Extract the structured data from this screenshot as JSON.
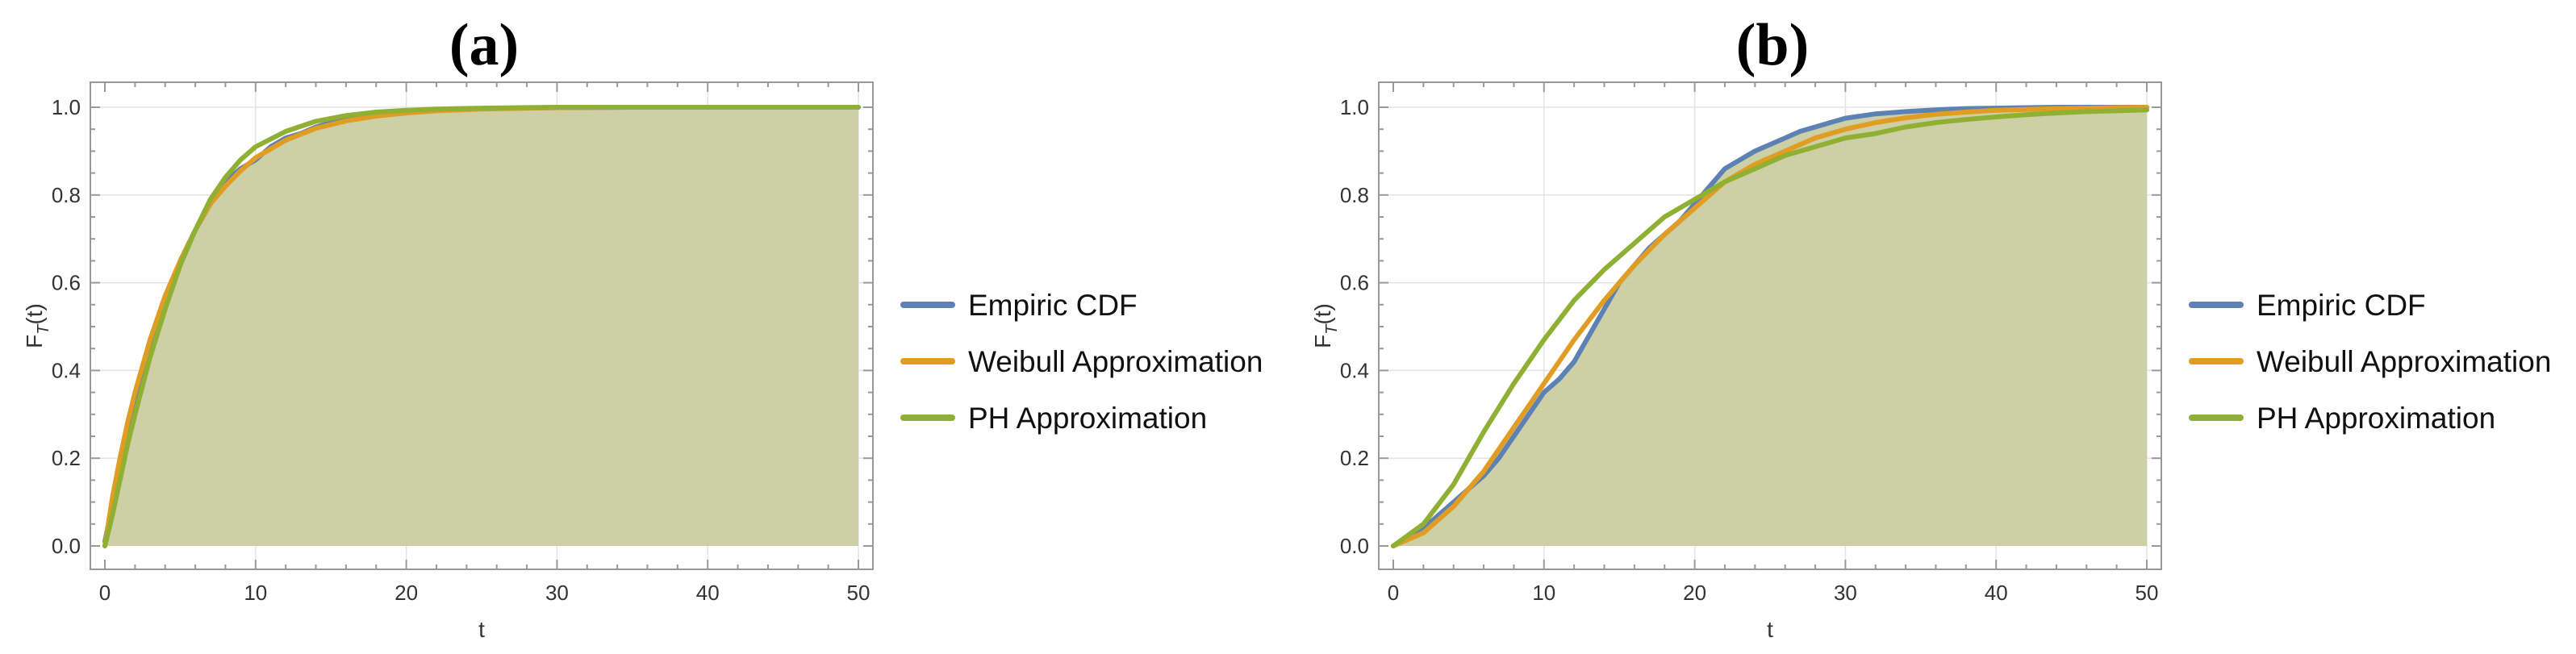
{
  "chart_data": [
    {
      "type": "line",
      "title": "(a)",
      "xlabel": "t",
      "ylabel": "F_T(t)",
      "xlim": [
        0,
        50
      ],
      "ylim": [
        0,
        1
      ],
      "xticks": [
        "0",
        "10",
        "20",
        "30",
        "40",
        "50"
      ],
      "yticks": [
        "0.0",
        "0.2",
        "0.4",
        "0.6",
        "0.8",
        "1.0"
      ],
      "grid": true,
      "legend_position": "right",
      "series": [
        {
          "name": "Empiric CDF",
          "color": "#5E81B5",
          "x": [
            0,
            1,
            2,
            3,
            4,
            5,
            6,
            7,
            8,
            9,
            10,
            11,
            12,
            13,
            14,
            15,
            16,
            18,
            20,
            22,
            25,
            30,
            35,
            40,
            45,
            50
          ],
          "y": [
            0.01,
            0.18,
            0.33,
            0.46,
            0.56,
            0.65,
            0.72,
            0.78,
            0.83,
            0.86,
            0.88,
            0.91,
            0.93,
            0.94,
            0.955,
            0.965,
            0.972,
            0.984,
            0.99,
            0.994,
            0.997,
            0.999,
            1.0,
            1.0,
            1.0,
            1.0
          ]
        },
        {
          "name": "Weibull Approximation",
          "color": "#E19C24",
          "x": [
            0,
            0.5,
            1,
            1.5,
            2,
            3,
            4,
            5,
            6,
            7,
            8,
            9,
            10,
            12,
            14,
            16,
            18,
            20,
            22,
            25,
            30,
            35,
            40,
            45,
            50
          ],
          "y": [
            0.0,
            0.11,
            0.2,
            0.28,
            0.35,
            0.47,
            0.57,
            0.65,
            0.72,
            0.78,
            0.82,
            0.855,
            0.885,
            0.925,
            0.952,
            0.969,
            0.98,
            0.987,
            0.992,
            0.996,
            0.999,
            1.0,
            1.0,
            1.0,
            1.0
          ]
        },
        {
          "name": "PH Approximation",
          "color": "#8FB032",
          "x": [
            0,
            0.5,
            1,
            1.5,
            2,
            3,
            4,
            5,
            6,
            7,
            8,
            9,
            10,
            12,
            14,
            16,
            18,
            20,
            22,
            25,
            30,
            35,
            40,
            45,
            50
          ],
          "y": [
            0.0,
            0.07,
            0.15,
            0.23,
            0.3,
            0.43,
            0.54,
            0.64,
            0.72,
            0.79,
            0.84,
            0.88,
            0.91,
            0.945,
            0.968,
            0.981,
            0.989,
            0.993,
            0.996,
            0.998,
            1.0,
            1.0,
            1.0,
            1.0,
            1.0
          ]
        }
      ]
    },
    {
      "type": "line",
      "title": "(b)",
      "xlabel": "t",
      "ylabel": "F_T(t)",
      "xlim": [
        0,
        50
      ],
      "ylim": [
        0,
        1
      ],
      "xticks": [
        "0",
        "10",
        "20",
        "30",
        "40",
        "50"
      ],
      "yticks": [
        "0.0",
        "0.2",
        "0.4",
        "0.6",
        "0.8",
        "1.0"
      ],
      "grid": true,
      "legend_position": "right",
      "series": [
        {
          "name": "Empiric CDF",
          "color": "#5E81B5",
          "x": [
            0,
            1,
            2,
            3,
            4,
            5,
            6,
            7,
            8,
            9,
            10,
            11,
            12,
            13,
            14,
            15,
            16,
            17,
            18,
            19,
            20,
            21,
            22,
            23,
            24,
            25,
            26,
            27,
            28,
            29,
            30,
            32,
            34,
            36,
            38,
            40,
            42,
            44,
            46,
            48,
            50
          ],
          "y": [
            0.0,
            0.02,
            0.04,
            0.07,
            0.1,
            0.13,
            0.16,
            0.2,
            0.25,
            0.3,
            0.35,
            0.38,
            0.42,
            0.48,
            0.54,
            0.6,
            0.64,
            0.68,
            0.71,
            0.74,
            0.78,
            0.82,
            0.86,
            0.88,
            0.9,
            0.915,
            0.93,
            0.945,
            0.955,
            0.965,
            0.975,
            0.985,
            0.99,
            0.994,
            0.997,
            0.998,
            0.999,
            1.0,
            1.0,
            1.0,
            1.0
          ]
        },
        {
          "name": "Weibull Approximation",
          "color": "#E19C24",
          "x": [
            0,
            2,
            4,
            6,
            8,
            10,
            12,
            14,
            16,
            18,
            20,
            22,
            24,
            26,
            28,
            30,
            32,
            34,
            36,
            38,
            40,
            42,
            44,
            46,
            48,
            50
          ],
          "y": [
            0.0,
            0.03,
            0.09,
            0.17,
            0.27,
            0.37,
            0.47,
            0.56,
            0.64,
            0.71,
            0.77,
            0.83,
            0.87,
            0.9,
            0.93,
            0.95,
            0.965,
            0.976,
            0.984,
            0.989,
            0.993,
            0.995,
            0.997,
            0.998,
            0.999,
            1.0
          ]
        },
        {
          "name": "PH Approximation",
          "color": "#8FB032",
          "x": [
            0,
            2,
            4,
            6,
            8,
            10,
            12,
            14,
            16,
            18,
            20,
            22,
            24,
            26,
            28,
            30,
            32,
            34,
            36,
            38,
            40,
            42,
            44,
            46,
            48,
            50
          ],
          "y": [
            0.0,
            0.05,
            0.14,
            0.26,
            0.37,
            0.47,
            0.56,
            0.63,
            0.69,
            0.75,
            0.79,
            0.83,
            0.86,
            0.89,
            0.91,
            0.93,
            0.94,
            0.955,
            0.965,
            0.972,
            0.978,
            0.983,
            0.987,
            0.99,
            0.992,
            0.994
          ]
        }
      ]
    }
  ],
  "colors": {
    "fill": "#CACCA0",
    "frame": "#999999",
    "grid": "#E3E3E3",
    "tick_text": "#333333"
  }
}
